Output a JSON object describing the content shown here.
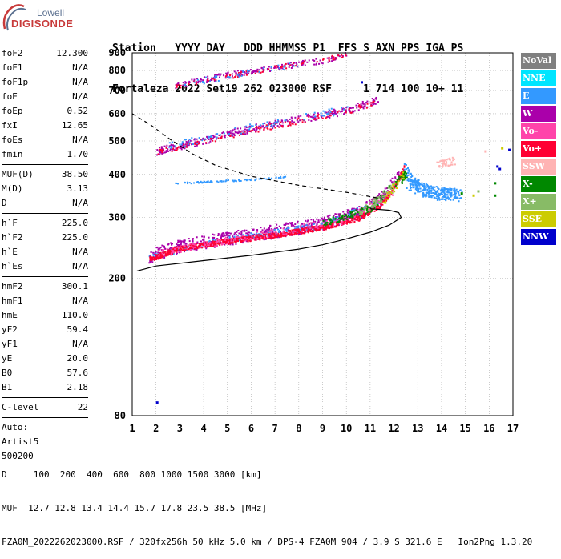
{
  "logo": {
    "line1": "Lowell",
    "line2": "DIGISONDE"
  },
  "header": {
    "line1": "Station   YYYY DAY   DDD HHMMSS P1  FFS S AXN PPS IGA PS",
    "line2": "Fortaleza 2022 Set19 262 023000 RSF     1 714 100 10+ 11"
  },
  "params": {
    "group1": [
      {
        "k": "foF2",
        "v": "12.300"
      },
      {
        "k": "foF1",
        "v": "N/A"
      },
      {
        "k": "foF1p",
        "v": "N/A"
      },
      {
        "k": "foE",
        "v": "N/A"
      },
      {
        "k": "foEp",
        "v": "0.52"
      },
      {
        "k": "fxI",
        "v": "12.65"
      },
      {
        "k": "foEs",
        "v": "N/A"
      },
      {
        "k": "fmin",
        "v": "1.70"
      }
    ],
    "group2": [
      {
        "k": "MUF(D)",
        "v": "38.50"
      },
      {
        "k": "M(D)",
        "v": "3.13"
      },
      {
        "k": "D",
        "v": "N/A"
      }
    ],
    "group3": [
      {
        "k": "h`F",
        "v": "225.0"
      },
      {
        "k": "h`F2",
        "v": "225.0"
      },
      {
        "k": "h`E",
        "v": "N/A"
      },
      {
        "k": "h`Es",
        "v": "N/A"
      }
    ],
    "group4": [
      {
        "k": "hmF2",
        "v": "300.1"
      },
      {
        "k": "hmF1",
        "v": "N/A"
      },
      {
        "k": "hmE",
        "v": "110.0"
      },
      {
        "k": "yF2",
        "v": "59.4"
      },
      {
        "k": "yF1",
        "v": "N/A"
      },
      {
        "k": "yE",
        "v": "20.0"
      },
      {
        "k": "B0",
        "v": "57.6"
      },
      {
        "k": "B1",
        "v": "2.18"
      }
    ],
    "group5": [
      {
        "k": "C-level",
        "v": "22"
      }
    ],
    "auto_lines": [
      "Auto:",
      "Artist5",
      "500200"
    ]
  },
  "legend": [
    {
      "label": "NoVal",
      "color": "#808080"
    },
    {
      "label": "NNE",
      "color": "#00e5ff"
    },
    {
      "label": "E",
      "color": "#3399ff"
    },
    {
      "label": "W",
      "color": "#aa00aa"
    },
    {
      "label": "Vo-",
      "color": "#ff44aa"
    },
    {
      "label": "Vo+",
      "color": "#ff0033"
    },
    {
      "label": "SSW",
      "color": "#ffb3b3"
    },
    {
      "label": "X-",
      "color": "#008800"
    },
    {
      "label": "X+",
      "color": "#88bb66"
    },
    {
      "label": "SSE",
      "color": "#cccc00"
    },
    {
      "label": "NNW",
      "color": "#0000cc"
    }
  ],
  "chart_data": {
    "type": "scatter",
    "xlabel": "",
    "ylabel": "",
    "xlim": [
      1,
      17
    ],
    "ylim": [
      80,
      900
    ],
    "y_scale": "log",
    "grid": true,
    "x_ticks": [
      1,
      2,
      3,
      4,
      5,
      6,
      7,
      8,
      9,
      10,
      11,
      12,
      13,
      14,
      15,
      16,
      17
    ],
    "y_ticks": [
      80,
      200,
      300,
      400,
      500,
      600,
      700,
      800,
      900
    ],
    "series": [
      {
        "name": "W",
        "color": "#aa00aa",
        "trace": [
          [
            1.7,
            233
          ],
          [
            3,
            250
          ],
          [
            5,
            262
          ],
          [
            7,
            275
          ],
          [
            9,
            290
          ],
          [
            10.5,
            310
          ],
          [
            11.5,
            345
          ],
          [
            12.2,
            400
          ]
        ]
      },
      {
        "name": "Vo+",
        "color": "#ff0033",
        "trace": [
          [
            1.7,
            228
          ],
          [
            3,
            245
          ],
          [
            5,
            257
          ],
          [
            7,
            268
          ],
          [
            9,
            282
          ],
          [
            10.5,
            300
          ],
          [
            11.5,
            330
          ],
          [
            12.1,
            380
          ],
          [
            12.4,
            420
          ]
        ]
      },
      {
        "name": "E",
        "color": "#3399ff",
        "trace": [
          [
            12.5,
            380
          ],
          [
            13.2,
            360
          ],
          [
            14,
            350
          ],
          [
            14.6,
            355
          ]
        ]
      },
      {
        "name": "X-",
        "color": "#008800",
        "trace": [
          [
            12.3,
            390
          ],
          [
            12.5,
            405
          ],
          [
            15.2,
            355
          ],
          [
            16.3,
            345
          ]
        ]
      },
      {
        "name": "NNW",
        "color": "#0000cc",
        "trace": [
          [
            16.2,
            425
          ],
          [
            16.4,
            415
          ],
          [
            2.0,
            88
          ],
          [
            10.6,
            745
          ]
        ]
      }
    ],
    "profile_solid": [
      [
        1.2,
        210
      ],
      [
        2,
        217
      ],
      [
        4,
        225
      ],
      [
        6,
        233
      ],
      [
        8,
        243
      ],
      [
        9,
        250
      ],
      [
        10,
        260
      ],
      [
        11,
        272
      ],
      [
        11.8,
        285
      ],
      [
        12.3,
        300
      ],
      [
        12.2,
        310
      ],
      [
        11.8,
        315
      ],
      [
        11,
        318
      ]
    ],
    "profile_dashed": [
      [
        1,
        600
      ],
      [
        1.8,
        555
      ],
      [
        2.6,
        505
      ],
      [
        3.5,
        460
      ],
      [
        4.5,
        425
      ],
      [
        6,
        395
      ],
      [
        8,
        372
      ],
      [
        10,
        355
      ],
      [
        11.5,
        340
      ]
    ]
  },
  "footer": {
    "line1": "D     100  200  400  600  800 1000 1500 3000 [km]",
    "line2": "MUF  12.7 12.8 13.4 14.4 15.7 17.8 23.5 38.5 [MHz]",
    "line3": "FZA0M_2022262023000.RSF / 320fx256h 50 kHz 5.0 km / DPS-4 FZA0M 904 / 3.9 S 321.6 E   Ion2Png 1.3.20"
  }
}
